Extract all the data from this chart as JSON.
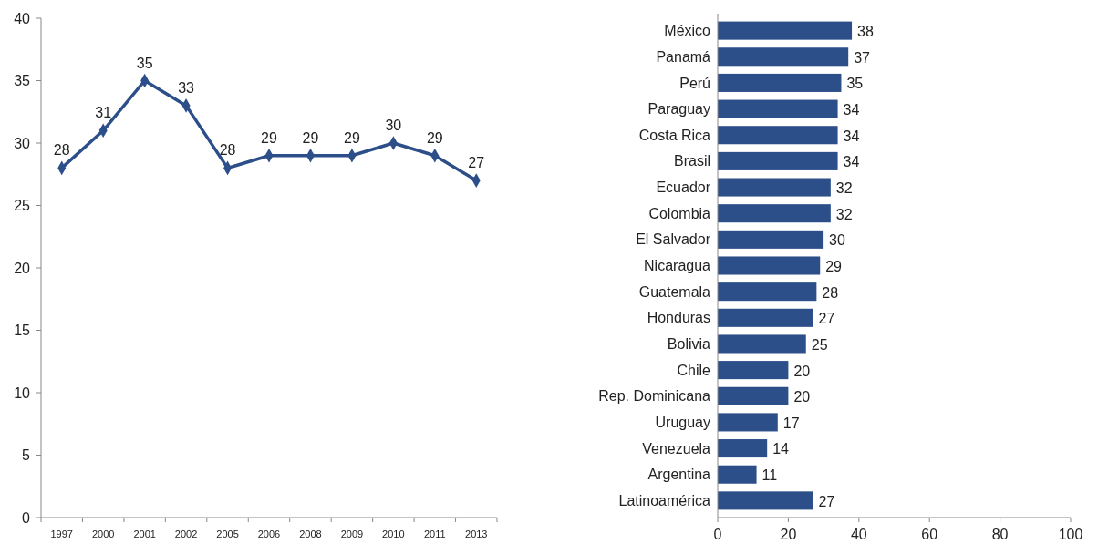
{
  "chart_data": [
    {
      "type": "line",
      "categories": [
        "1997",
        "2000",
        "2001",
        "2002",
        "2005",
        "2006",
        "2008",
        "2009",
        "2010",
        "2011",
        "2013"
      ],
      "values": [
        28,
        31,
        35,
        33,
        28,
        29,
        29,
        29,
        30,
        29,
        27
      ],
      "color": "#2c4f8a",
      "ylim": [
        0,
        40
      ],
      "yticks": [
        0,
        5,
        10,
        15,
        20,
        25,
        30,
        35,
        40
      ],
      "data_labels": true,
      "marker": "diamond"
    },
    {
      "type": "bar",
      "orientation": "horizontal",
      "categories": [
        "México",
        "Panamá",
        "Perú",
        "Paraguay",
        "Costa Rica",
        "Brasil",
        "Ecuador",
        "Colombia",
        "El Salvador",
        "Nicaragua",
        "Guatemala",
        "Honduras",
        "Bolivia",
        "Chile",
        "Rep. Dominicana",
        "Uruguay",
        "Venezuela",
        "Argentina",
        "Latinoamérica"
      ],
      "values": [
        38,
        37,
        35,
        34,
        34,
        34,
        32,
        32,
        30,
        29,
        28,
        27,
        25,
        20,
        20,
        17,
        14,
        11,
        27
      ],
      "color": "#2c4f8a",
      "xlim": [
        0,
        100
      ],
      "xticks": [
        0,
        20,
        40,
        60,
        80,
        100
      ],
      "data_labels": true
    }
  ]
}
